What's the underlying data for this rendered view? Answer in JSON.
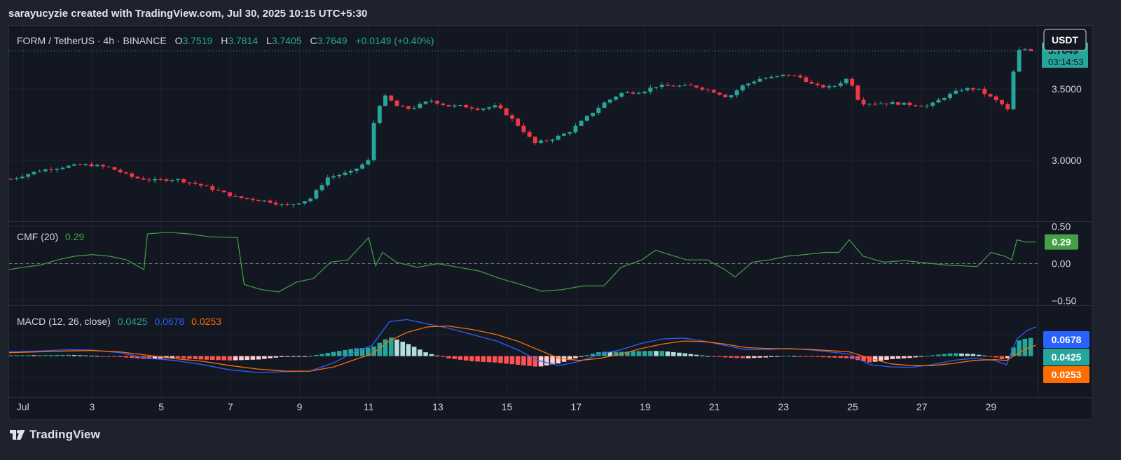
{
  "header": {
    "attribution": "sarayucyzie created with TradingView.com, Jul 30, 2025 10:15 UTC+5:30"
  },
  "footer": {
    "brand": "TradingView",
    "logo_icon": "tradingview-logo-icon"
  },
  "colors": {
    "background": "#131722",
    "up": "#26a69a",
    "down": "#f23645",
    "cmf": "#43a047",
    "macd": "#2962ff",
    "signal": "#ff6d00",
    "hist_up_strong": "#26a69a",
    "hist_up_weak": "#b2dfdb",
    "hist_down_strong": "#ff5252",
    "hist_down_weak": "#ffcdd2"
  },
  "chart_data": [
    {
      "type": "candlestick",
      "symbol": "FORM / TetherUS",
      "interval": "4h",
      "exchange": "BINANCE",
      "ohlc_labels": {
        "o_label": "O",
        "o": "3.7519",
        "h_label": "H",
        "h": "3.7814",
        "l_label": "L",
        "l": "3.7405",
        "c_label": "C",
        "c": "3.7649",
        "change": "+0.0149 (+0.40%)"
      },
      "currency_button": "USDT",
      "last_price": "3.7649",
      "countdown": "03:14:53",
      "y_ticks": [
        "3.5000",
        "3.0000"
      ],
      "y_tick_values": [
        3.5,
        3.0
      ],
      "ylim": [
        2.58,
        3.94
      ],
      "x_ticks": [
        "Jul",
        "3",
        "5",
        "7",
        "9",
        "11",
        "13",
        "15",
        "17",
        "19",
        "21",
        "23",
        "25",
        "27",
        "29"
      ],
      "x_tick_days": [
        1,
        3,
        5,
        7,
        9,
        11,
        13,
        15,
        17,
        19,
        21,
        23,
        25,
        27,
        29
      ],
      "x_range_days": [
        0.6,
        30.35
      ],
      "close_anchors": [
        [
          0.65,
          2.87
        ],
        [
          1.5,
          2.93
        ],
        [
          2.3,
          2.96
        ],
        [
          2.9,
          2.97
        ],
        [
          3.5,
          2.95
        ],
        [
          4.2,
          2.88
        ],
        [
          4.8,
          2.86
        ],
        [
          5.4,
          2.87
        ],
        [
          6.1,
          2.83
        ],
        [
          6.6,
          2.79
        ],
        [
          7.2,
          2.74
        ],
        [
          7.6,
          2.73
        ],
        [
          8.2,
          2.71
        ],
        [
          8.6,
          2.68
        ],
        [
          9.3,
          2.73
        ],
        [
          9.8,
          2.88
        ],
        [
          10.5,
          2.92
        ],
        [
          11.0,
          3.0
        ],
        [
          11.2,
          3.35
        ],
        [
          11.5,
          3.45
        ],
        [
          11.8,
          3.38
        ],
        [
          12.2,
          3.36
        ],
        [
          12.8,
          3.42
        ],
        [
          13.3,
          3.38
        ],
        [
          13.7,
          3.38
        ],
        [
          14.2,
          3.36
        ],
        [
          14.7,
          3.38
        ],
        [
          15.1,
          3.3
        ],
        [
          15.5,
          3.2
        ],
        [
          15.8,
          3.12
        ],
        [
          16.3,
          3.15
        ],
        [
          16.8,
          3.2
        ],
        [
          17.3,
          3.3
        ],
        [
          17.8,
          3.4
        ],
        [
          18.3,
          3.47
        ],
        [
          18.9,
          3.48
        ],
        [
          19.3,
          3.52
        ],
        [
          19.8,
          3.52
        ],
        [
          20.4,
          3.52
        ],
        [
          21.0,
          3.48
        ],
        [
          21.4,
          3.44
        ],
        [
          21.8,
          3.52
        ],
        [
          22.3,
          3.57
        ],
        [
          22.7,
          3.58
        ],
        [
          23.1,
          3.6
        ],
        [
          23.5,
          3.58
        ],
        [
          23.9,
          3.52
        ],
        [
          24.4,
          3.51
        ],
        [
          24.9,
          3.58
        ],
        [
          25.2,
          3.4
        ],
        [
          25.7,
          3.4
        ],
        [
          26.2,
          3.4
        ],
        [
          26.7,
          3.39
        ],
        [
          27.2,
          3.38
        ],
        [
          27.7,
          3.45
        ],
        [
          28.2,
          3.5
        ],
        [
          28.6,
          3.5
        ],
        [
          29.0,
          3.44
        ],
        [
          29.4,
          3.38
        ],
        [
          29.55,
          3.33
        ],
        [
          29.7,
          3.76
        ],
        [
          30.0,
          3.78
        ],
        [
          30.3,
          3.765
        ]
      ]
    },
    {
      "type": "line",
      "indicator": "CMF",
      "label": "CMF (20)",
      "value": "0.29",
      "y_ticks": [
        "0.50",
        "0.00",
        "−0.50"
      ],
      "y_tick_values": [
        0.5,
        0.0,
        -0.5
      ],
      "ylim": [
        -0.55,
        0.55
      ],
      "points": [
        [
          0.6,
          -0.08
        ],
        [
          1.0,
          -0.05
        ],
        [
          1.5,
          -0.02
        ],
        [
          2.0,
          0.05
        ],
        [
          2.5,
          0.1
        ],
        [
          3.0,
          0.12
        ],
        [
          3.5,
          0.1
        ],
        [
          4.0,
          0.05
        ],
        [
          4.5,
          -0.08
        ],
        [
          4.6,
          0.4
        ],
        [
          5.2,
          0.42
        ],
        [
          5.8,
          0.4
        ],
        [
          6.4,
          0.36
        ],
        [
          7.2,
          0.35
        ],
        [
          7.4,
          -0.28
        ],
        [
          7.9,
          -0.35
        ],
        [
          8.4,
          -0.38
        ],
        [
          8.9,
          -0.25
        ],
        [
          9.4,
          -0.2
        ],
        [
          9.9,
          0.02
        ],
        [
          10.4,
          0.05
        ],
        [
          11.0,
          0.35
        ],
        [
          11.2,
          -0.03
        ],
        [
          11.4,
          0.15
        ],
        [
          11.8,
          0.02
        ],
        [
          12.4,
          -0.05
        ],
        [
          13.0,
          0.0
        ],
        [
          13.6,
          -0.05
        ],
        [
          14.2,
          -0.1
        ],
        [
          14.8,
          -0.2
        ],
        [
          15.4,
          -0.28
        ],
        [
          16.0,
          -0.37
        ],
        [
          16.6,
          -0.35
        ],
        [
          17.2,
          -0.3
        ],
        [
          17.8,
          -0.3
        ],
        [
          18.3,
          -0.05
        ],
        [
          18.9,
          0.05
        ],
        [
          19.3,
          0.18
        ],
        [
          19.7,
          0.12
        ],
        [
          20.2,
          0.05
        ],
        [
          20.8,
          0.05
        ],
        [
          21.3,
          -0.08
        ],
        [
          21.6,
          -0.18
        ],
        [
          22.1,
          0.02
        ],
        [
          22.6,
          0.05
        ],
        [
          23.1,
          0.1
        ],
        [
          23.6,
          0.12
        ],
        [
          24.2,
          0.15
        ],
        [
          24.6,
          0.15
        ],
        [
          24.9,
          0.32
        ],
        [
          25.3,
          0.1
        ],
        [
          25.9,
          0.02
        ],
        [
          26.5,
          0.04
        ],
        [
          27.1,
          0.01
        ],
        [
          27.7,
          -0.02
        ],
        [
          28.2,
          -0.03
        ],
        [
          28.6,
          -0.04
        ],
        [
          29.0,
          0.15
        ],
        [
          29.4,
          0.1
        ],
        [
          29.6,
          0.05
        ],
        [
          29.75,
          0.32
        ],
        [
          30.0,
          0.29
        ],
        [
          30.3,
          0.29
        ]
      ]
    },
    {
      "type": "line+bar",
      "indicator": "MACD",
      "label": "MACD (12, 26, close)",
      "values_text": {
        "histogram": "0.0425",
        "macd": "0.0678",
        "signal": "0.0253"
      },
      "ylim": [
        -0.095,
        0.115
      ],
      "macd_points": [
        [
          0.6,
          0.01
        ],
        [
          1.5,
          0.012
        ],
        [
          2.3,
          0.015
        ],
        [
          3.0,
          0.014
        ],
        [
          3.8,
          0.008
        ],
        [
          4.6,
          -0.005
        ],
        [
          5.4,
          -0.01
        ],
        [
          6.2,
          -0.02
        ],
        [
          7.0,
          -0.032
        ],
        [
          7.8,
          -0.038
        ],
        [
          8.6,
          -0.036
        ],
        [
          9.3,
          -0.035
        ],
        [
          10.0,
          -0.015
        ],
        [
          10.6,
          0.01
        ],
        [
          11.1,
          0.025
        ],
        [
          11.6,
          0.08
        ],
        [
          12.1,
          0.085
        ],
        [
          12.7,
          0.075
        ],
        [
          13.3,
          0.065
        ],
        [
          14.0,
          0.05
        ],
        [
          14.7,
          0.035
        ],
        [
          15.3,
          0.015
        ],
        [
          15.9,
          -0.01
        ],
        [
          16.5,
          -0.022
        ],
        [
          17.1,
          -0.012
        ],
        [
          17.7,
          0.005
        ],
        [
          18.3,
          0.015
        ],
        [
          18.9,
          0.03
        ],
        [
          19.5,
          0.04
        ],
        [
          20.1,
          0.042
        ],
        [
          20.7,
          0.035
        ],
        [
          21.3,
          0.025
        ],
        [
          21.9,
          0.015
        ],
        [
          22.5,
          0.015
        ],
        [
          23.1,
          0.018
        ],
        [
          23.7,
          0.015
        ],
        [
          24.3,
          0.01
        ],
        [
          24.9,
          0.005
        ],
        [
          25.5,
          -0.02
        ],
        [
          26.1,
          -0.025
        ],
        [
          26.7,
          -0.026
        ],
        [
          27.3,
          -0.02
        ],
        [
          27.9,
          -0.01
        ],
        [
          28.5,
          -0.005
        ],
        [
          29.1,
          -0.01
        ],
        [
          29.45,
          -0.02
        ],
        [
          29.75,
          0.04
        ],
        [
          30.05,
          0.06
        ],
        [
          30.3,
          0.0678
        ]
      ],
      "signal_points": [
        [
          0.6,
          0.008
        ],
        [
          1.5,
          0.01
        ],
        [
          2.3,
          0.012
        ],
        [
          3.0,
          0.013
        ],
        [
          3.8,
          0.01
        ],
        [
          4.6,
          0.002
        ],
        [
          5.4,
          -0.006
        ],
        [
          6.2,
          -0.012
        ],
        [
          7.0,
          -0.022
        ],
        [
          7.8,
          -0.03
        ],
        [
          8.6,
          -0.035
        ],
        [
          9.3,
          -0.035
        ],
        [
          10.0,
          -0.025
        ],
        [
          10.6,
          -0.008
        ],
        [
          11.1,
          0.005
        ],
        [
          11.6,
          0.035
        ],
        [
          12.1,
          0.055
        ],
        [
          12.7,
          0.068
        ],
        [
          13.3,
          0.07
        ],
        [
          14.0,
          0.062
        ],
        [
          14.7,
          0.05
        ],
        [
          15.3,
          0.035
        ],
        [
          15.9,
          0.015
        ],
        [
          16.5,
          -0.005
        ],
        [
          17.1,
          -0.01
        ],
        [
          17.7,
          -0.005
        ],
        [
          18.3,
          0.005
        ],
        [
          18.9,
          0.018
        ],
        [
          19.5,
          0.028
        ],
        [
          20.1,
          0.035
        ],
        [
          20.7,
          0.034
        ],
        [
          21.3,
          0.028
        ],
        [
          21.9,
          0.02
        ],
        [
          22.5,
          0.018
        ],
        [
          23.1,
          0.017
        ],
        [
          23.7,
          0.016
        ],
        [
          24.3,
          0.013
        ],
        [
          24.9,
          0.01
        ],
        [
          25.5,
          -0.005
        ],
        [
          26.1,
          -0.018
        ],
        [
          26.7,
          -0.022
        ],
        [
          27.3,
          -0.022
        ],
        [
          27.9,
          -0.017
        ],
        [
          28.5,
          -0.01
        ],
        [
          29.1,
          -0.008
        ],
        [
          29.45,
          -0.01
        ],
        [
          29.75,
          0.005
        ],
        [
          30.05,
          0.018
        ],
        [
          30.3,
          0.0253
        ]
      ]
    }
  ]
}
